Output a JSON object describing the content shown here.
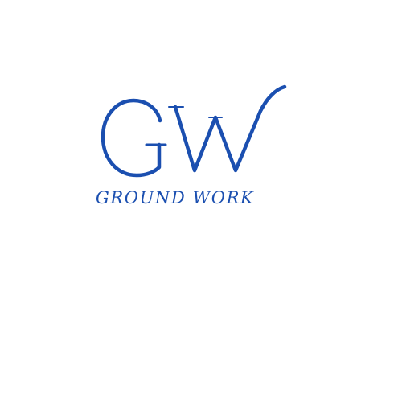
{
  "logo": {
    "monogram": "GW",
    "name": "GROUND WORK",
    "color": "#1b4fb0"
  }
}
